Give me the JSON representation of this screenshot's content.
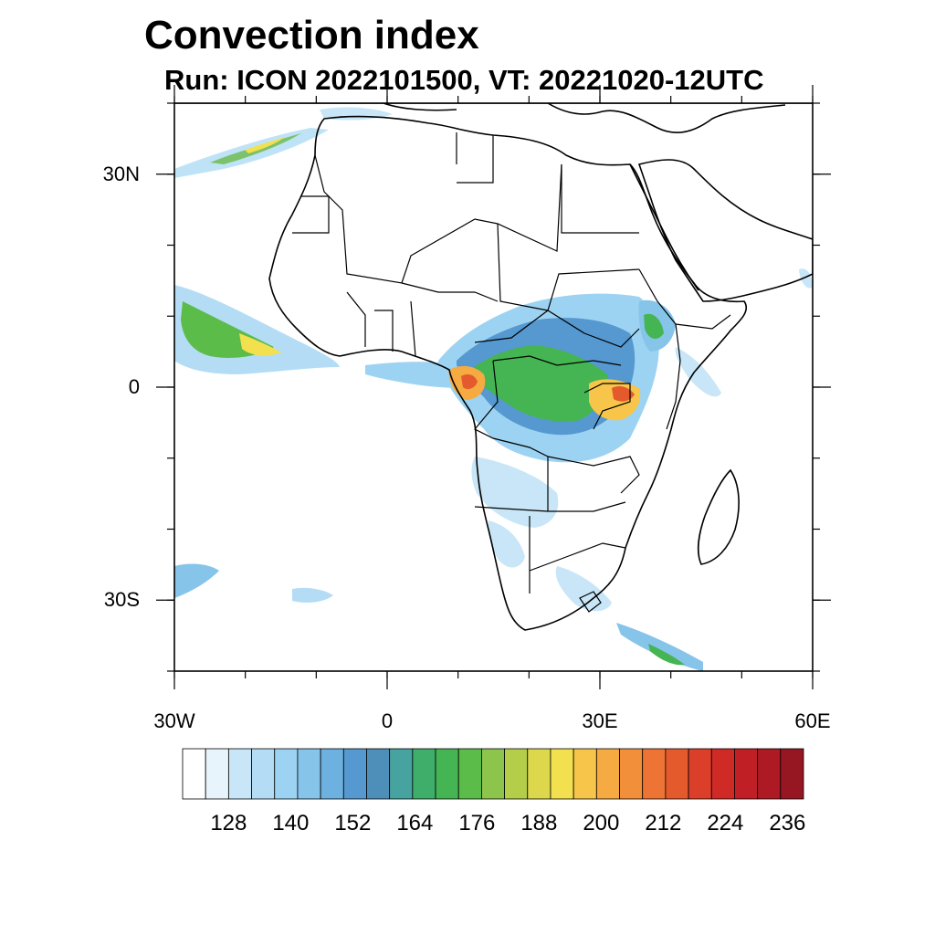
{
  "title": "Convection index",
  "subtitle": "Run: ICON 2022101500,  VT: 20221020-12UTC",
  "map": {
    "extent": {
      "lon_min": -30,
      "lon_max": 60,
      "lat_min": -40,
      "lat_max": 40
    },
    "lon_ticks": [
      {
        "value": -30,
        "label": "30W"
      },
      {
        "value": 0,
        "label": "0"
      },
      {
        "value": 30,
        "label": "30E"
      },
      {
        "value": 60,
        "label": "60E"
      }
    ],
    "lat_ticks": [
      {
        "value": 30,
        "label": "30N"
      },
      {
        "value": 0,
        "label": "0"
      },
      {
        "value": -30,
        "label": "30S"
      }
    ],
    "minor_lon_step": 10,
    "minor_lat_step": 10
  },
  "colorbar": {
    "colors": [
      "#ffffff",
      "#e8f4fb",
      "#c8e6f7",
      "#b4ddf5",
      "#9dd3f2",
      "#86c4ea",
      "#6cb1e0",
      "#5698d0",
      "#4d8fb8",
      "#47a3a0",
      "#3fae6a",
      "#45b553",
      "#5cbc49",
      "#8cc44c",
      "#b5ce4a",
      "#ddd84b",
      "#f2e04f",
      "#f6c549",
      "#f5aa42",
      "#f28f3b",
      "#ed7434",
      "#e55a2d",
      "#dc3f29",
      "#d02a27",
      "#c11f26",
      "#ad1a24",
      "#961722"
    ],
    "labels": [
      "128",
      "140",
      "152",
      "164",
      "176",
      "188",
      "200",
      "212",
      "224",
      "236"
    ]
  }
}
